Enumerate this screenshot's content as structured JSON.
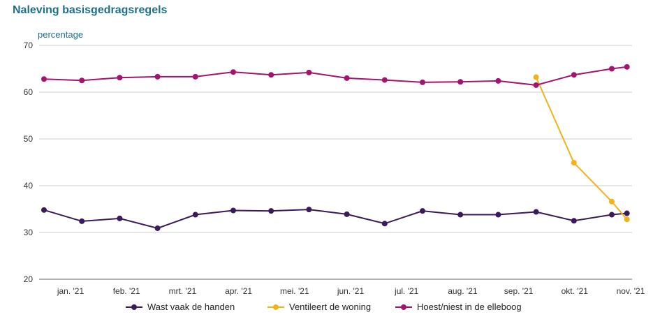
{
  "chart_data": {
    "type": "line",
    "title": "Naleving basisgedragsregels",
    "ylabel": "percentage",
    "xlabel": "",
    "ylim": [
      20,
      70
    ],
    "yticks": [
      20,
      30,
      40,
      50,
      60,
      70
    ],
    "xtick_labels": [
      "jan. '21",
      "feb. '21",
      "mrt. '21",
      "apr. '21",
      "mei. '21",
      "jun. '21",
      "jul. '21",
      "aug. '21",
      "sep. '21",
      "okt. '21",
      "nov. '21"
    ],
    "grid": "horizontal",
    "legend_position": "bottom",
    "series": [
      {
        "name": "Wast vaak de handen",
        "color": "#3b1a5a",
        "points": [
          [
            0,
            34.8
          ],
          [
            1,
            32.4
          ],
          [
            2,
            33.0
          ],
          [
            3,
            30.9
          ],
          [
            4,
            33.8
          ],
          [
            5,
            34.7
          ],
          [
            6,
            34.6
          ],
          [
            7,
            34.9
          ],
          [
            8,
            33.9
          ],
          [
            9,
            31.9
          ],
          [
            10,
            34.6
          ],
          [
            11,
            33.8
          ],
          [
            12,
            33.8
          ],
          [
            13,
            34.4
          ],
          [
            14,
            32.5
          ],
          [
            15,
            33.8
          ],
          [
            15.4,
            34.1
          ]
        ]
      },
      {
        "name": "Ventileert de woning",
        "color": "#f2b21a",
        "points": [
          [
            13,
            63.2
          ],
          [
            14,
            44.9
          ],
          [
            15,
            36.6
          ],
          [
            15.4,
            32.8
          ]
        ]
      },
      {
        "name": "Hoest/niest in de elleboog",
        "color": "#a3136f",
        "points": [
          [
            0,
            62.8
          ],
          [
            1,
            62.5
          ],
          [
            2,
            63.1
          ],
          [
            3,
            63.3
          ],
          [
            4,
            63.3
          ],
          [
            5,
            64.3
          ],
          [
            6,
            63.7
          ],
          [
            7,
            64.2
          ],
          [
            8,
            63.0
          ],
          [
            9,
            62.6
          ],
          [
            10,
            62.1
          ],
          [
            11,
            62.2
          ],
          [
            12,
            62.4
          ],
          [
            13,
            61.5
          ],
          [
            14,
            63.7
          ],
          [
            15,
            65.0
          ],
          [
            15.4,
            65.4
          ]
        ]
      }
    ]
  }
}
